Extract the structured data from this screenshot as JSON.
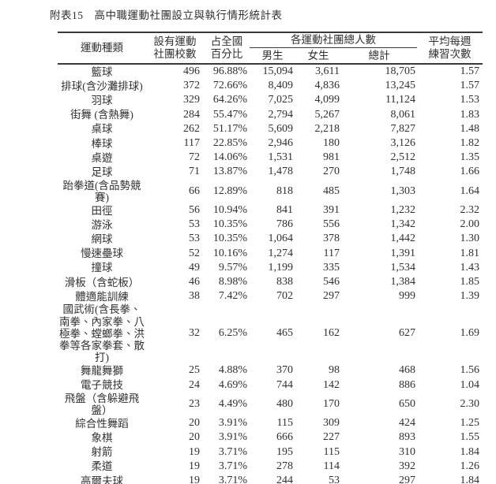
{
  "page": {
    "title": "附表15　高中職運動社團設立與執行情形統計表"
  },
  "colors": {
    "text": "#303030",
    "rule": "#3a3a3a",
    "background": "#ffffff"
  },
  "table": {
    "col_headers": {
      "sport": "運動種類",
      "schools": "設有運動\n社團校數",
      "pct": "占全國\n百分比",
      "members_group": "各運動社團總人數",
      "male": "男生",
      "female": "女生",
      "total": "總計",
      "freq": "平均每週\n練習次數"
    },
    "rows": [
      {
        "sport": "籃球",
        "schools": "496",
        "pct": "96.88%",
        "male": "15,094",
        "female": "3,611",
        "total": "18,705",
        "freq": "1.57"
      },
      {
        "sport": "排球(含沙灘排球)",
        "schools": "372",
        "pct": "72.66%",
        "male": "8,409",
        "female": "4,836",
        "total": "13,245",
        "freq": "1.57"
      },
      {
        "sport": "羽球",
        "schools": "329",
        "pct": "64.26%",
        "male": "7,025",
        "female": "4,099",
        "total": "11,124",
        "freq": "1.53"
      },
      {
        "sport": "街舞 (含熱舞)",
        "schools": "284",
        "pct": "55.47%",
        "male": "2,794",
        "female": "5,267",
        "total": "8,061",
        "freq": "1.83"
      },
      {
        "sport": "桌球",
        "schools": "262",
        "pct": "51.17%",
        "male": "5,609",
        "female": "2,218",
        "total": "7,827",
        "freq": "1.48"
      },
      {
        "sport": "棒球",
        "schools": "117",
        "pct": "22.85%",
        "male": "2,946",
        "female": "180",
        "total": "3,126",
        "freq": "1.82"
      },
      {
        "sport": "桌遊",
        "schools": "72",
        "pct": "14.06%",
        "male": "1,531",
        "female": "981",
        "total": "2,512",
        "freq": "1.35"
      },
      {
        "sport": "足球",
        "schools": "71",
        "pct": "13.87%",
        "male": "1,478",
        "female": "270",
        "total": "1,748",
        "freq": "1.66"
      },
      {
        "sport": "跆拳道(含品勢競\n賽)",
        "schools": "66",
        "pct": "12.89%",
        "male": "818",
        "female": "485",
        "total": "1,303",
        "freq": "1.64"
      },
      {
        "sport": "田徑",
        "schools": "56",
        "pct": "10.94%",
        "male": "841",
        "female": "391",
        "total": "1,232",
        "freq": "2.32"
      },
      {
        "sport": "游泳",
        "schools": "53",
        "pct": "10.35%",
        "male": "786",
        "female": "556",
        "total": "1,342",
        "freq": "2.00"
      },
      {
        "sport": "網球",
        "schools": "53",
        "pct": "10.35%",
        "male": "1,064",
        "female": "378",
        "total": "1,442",
        "freq": "1.30"
      },
      {
        "sport": "慢速壘球",
        "schools": "52",
        "pct": "10.16%",
        "male": "1,274",
        "female": "117",
        "total": "1,391",
        "freq": "1.81"
      },
      {
        "sport": "撞球",
        "schools": "49",
        "pct": "9.57%",
        "male": "1,199",
        "female": "335",
        "total": "1,534",
        "freq": "1.43"
      },
      {
        "sport": "滑板（含蛇板）",
        "schools": "46",
        "pct": "8.98%",
        "male": "838",
        "female": "546",
        "total": "1,384",
        "freq": "1.85"
      },
      {
        "sport": "體適能訓練",
        "schools": "38",
        "pct": "7.42%",
        "male": "702",
        "female": "297",
        "total": "999",
        "freq": "1.39"
      },
      {
        "sport": "國武術(含長拳、\n南拳、內家拳、八\n極拳、螳螂拳、洪\n拳等各家拳套、散\n打)",
        "schools": "32",
        "pct": "6.25%",
        "male": "465",
        "female": "162",
        "total": "627",
        "freq": "1.69"
      },
      {
        "sport": "舞龍舞獅",
        "schools": "25",
        "pct": "4.88%",
        "male": "370",
        "female": "98",
        "total": "468",
        "freq": "1.56"
      },
      {
        "sport": "電子競技",
        "schools": "24",
        "pct": "4.69%",
        "male": "744",
        "female": "142",
        "total": "886",
        "freq": "1.04"
      },
      {
        "sport": "飛盤（含躲避飛\n盤）",
        "schools": "23",
        "pct": "4.49%",
        "male": "480",
        "female": "170",
        "total": "650",
        "freq": "2.30"
      },
      {
        "sport": "綜合性舞蹈",
        "schools": "20",
        "pct": "3.91%",
        "male": "115",
        "female": "309",
        "total": "424",
        "freq": "1.25"
      },
      {
        "sport": "象棋",
        "schools": "20",
        "pct": "3.91%",
        "male": "666",
        "female": "227",
        "total": "893",
        "freq": "1.55"
      },
      {
        "sport": "射箭",
        "schools": "19",
        "pct": "3.71%",
        "male": "195",
        "female": "115",
        "total": "310",
        "freq": "1.84"
      },
      {
        "sport": "柔道",
        "schools": "19",
        "pct": "3.71%",
        "male": "278",
        "female": "114",
        "total": "392",
        "freq": "1.26"
      },
      {
        "sport": "高爾夫球",
        "schools": "19",
        "pct": "3.71%",
        "male": "244",
        "female": "53",
        "total": "297",
        "freq": "1.84"
      }
    ]
  }
}
